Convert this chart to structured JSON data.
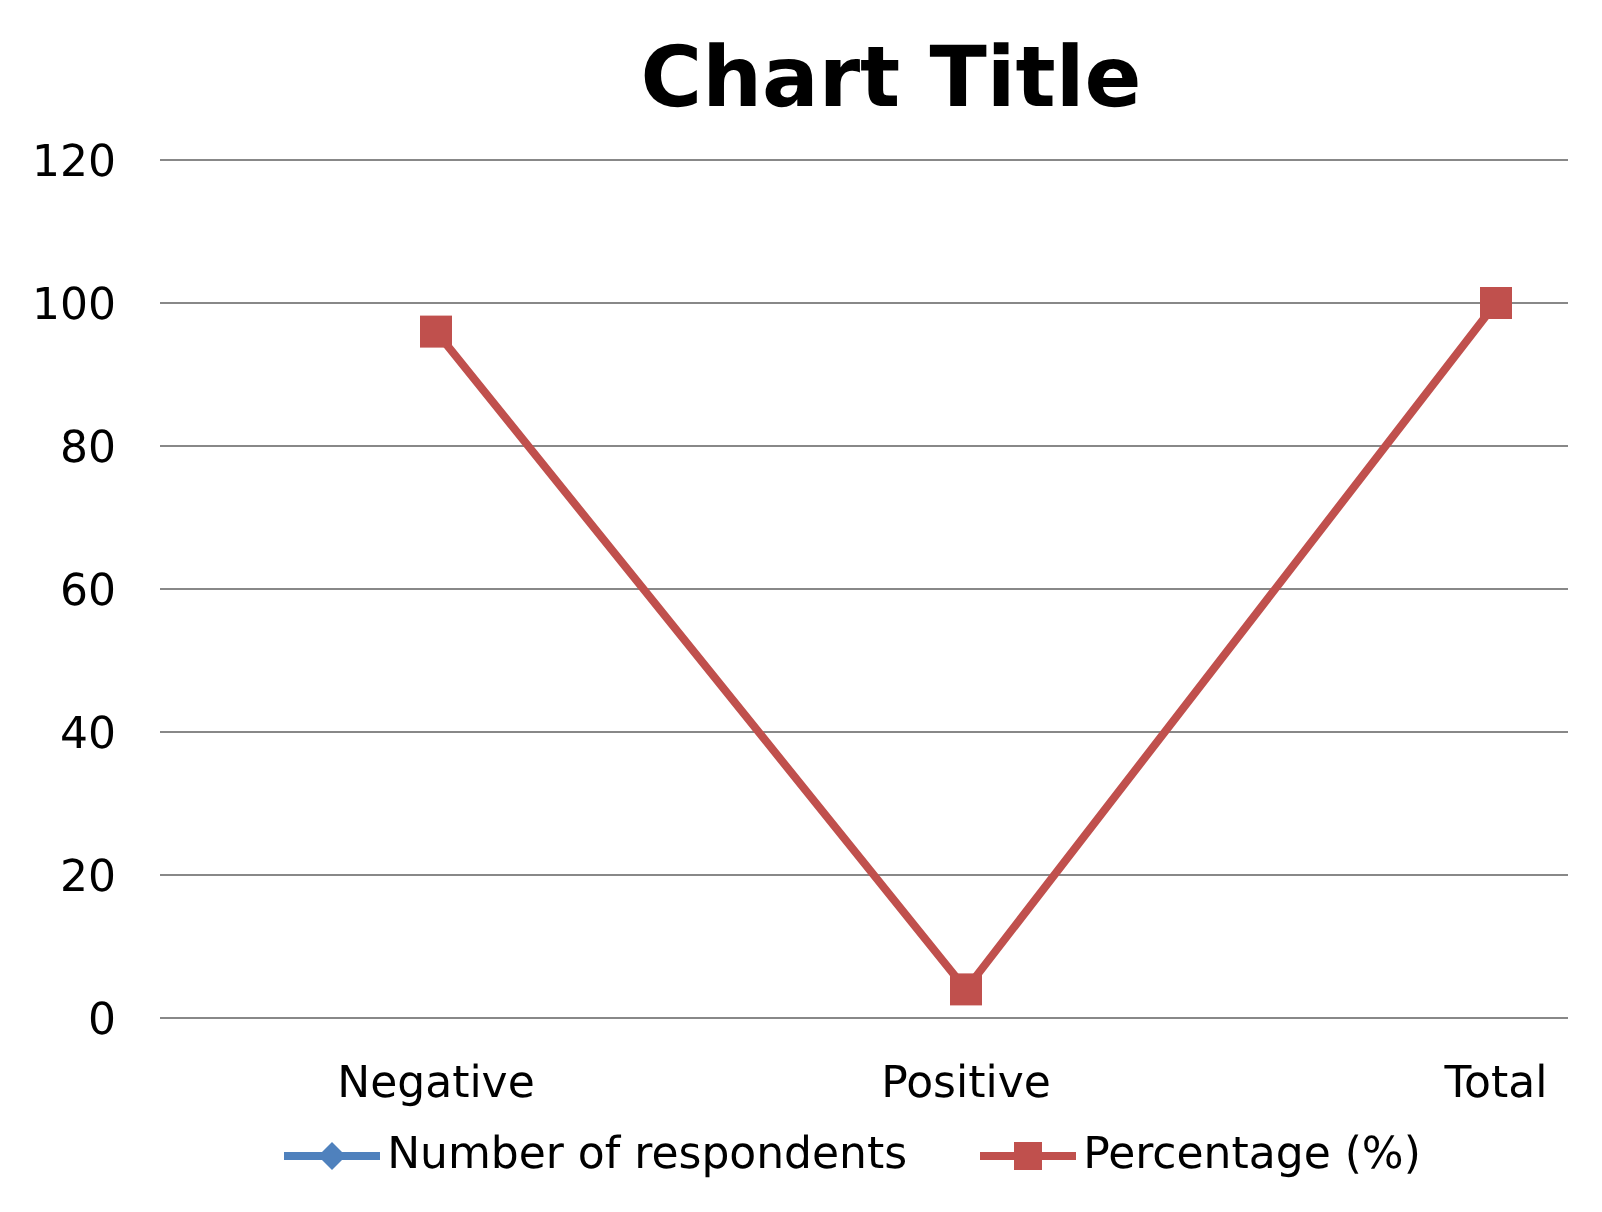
{
  "chart_data": {
    "type": "line",
    "title": "Chart Title",
    "categories": [
      "Negative",
      "Positive",
      "Total"
    ],
    "series": [
      {
        "name": "Number of respondents",
        "color": "#4f81bd",
        "marker": "diamond",
        "values": [
          null,
          null,
          null
        ]
      },
      {
        "name": "Percentage (%)",
        "color": "#c0504d",
        "marker": "square",
        "values": [
          96,
          4,
          100
        ]
      }
    ],
    "ylim": [
      0,
      120
    ],
    "yticks": [
      0,
      20,
      40,
      60,
      80,
      100,
      120
    ],
    "grid": "y",
    "legend": "bottom"
  }
}
